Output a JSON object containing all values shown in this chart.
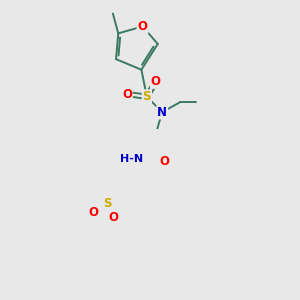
{
  "background_color": "#e8e8e8",
  "bond_color": "#3a7a60",
  "atom_colors": {
    "O": "#ff0000",
    "N": "#0000cc",
    "S": "#ccaa00",
    "C": "#3a7a60",
    "H": "#607070"
  },
  "font_size_atom": 8.5,
  "figsize": [
    3.0,
    3.0
  ],
  "dpi": 100
}
